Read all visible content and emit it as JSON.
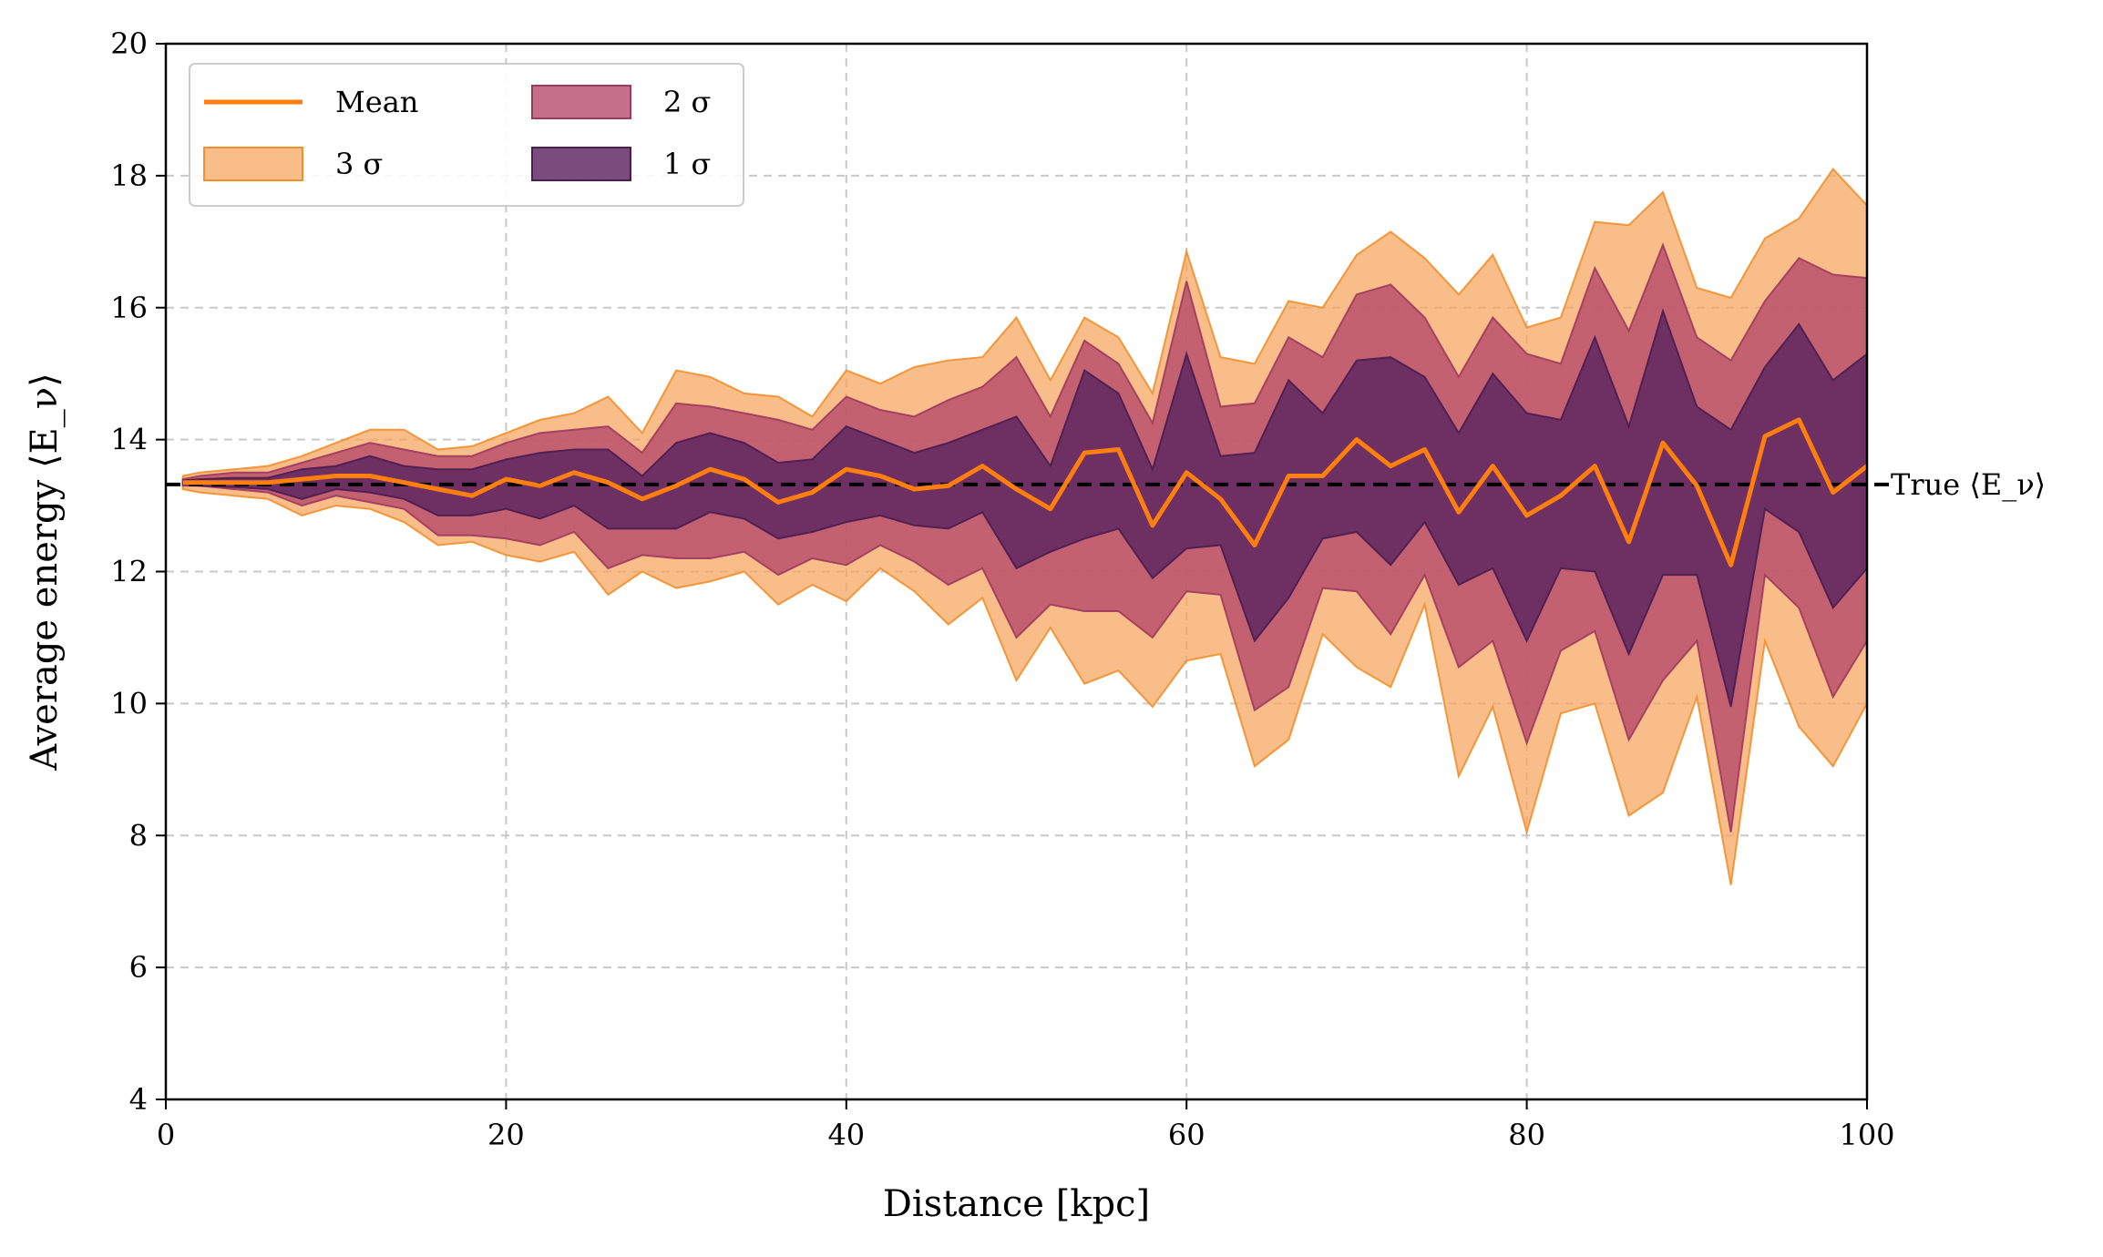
{
  "chart_data": {
    "type": "area",
    "xlabel": "Distance [kpc]",
    "ylabel": "Average energy ⟨E_ν⟩",
    "xlim": [
      0,
      100
    ],
    "ylim": [
      4,
      20
    ],
    "xticks": [
      0,
      20,
      40,
      60,
      80,
      100
    ],
    "yticks": [
      4,
      6,
      8,
      10,
      12,
      14,
      16,
      18,
      20
    ],
    "grid": "dashed",
    "legend_position": "top-left",
    "reference_line": {
      "value": 13.32,
      "label": "True ⟨E_ν⟩",
      "style": "dashed",
      "color": "#000000"
    },
    "x": [
      1,
      2,
      4,
      6,
      8,
      10,
      12,
      14,
      16,
      18,
      20,
      22,
      24,
      26,
      28,
      30,
      32,
      34,
      36,
      38,
      40,
      42,
      44,
      46,
      48,
      50,
      52,
      54,
      56,
      58,
      60,
      62,
      64,
      66,
      68,
      70,
      72,
      74,
      76,
      78,
      80,
      82,
      84,
      86,
      88,
      90,
      92,
      94,
      96,
      98,
      100
    ],
    "series": [
      {
        "name": "Mean",
        "kind": "line",
        "color": "#ff7f0e",
        "values": [
          13.35,
          13.35,
          13.35,
          13.35,
          13.4,
          13.45,
          13.45,
          13.35,
          13.25,
          13.15,
          13.4,
          13.3,
          13.5,
          13.35,
          13.1,
          13.3,
          13.55,
          13.4,
          13.05,
          13.2,
          13.55,
          13.45,
          13.25,
          13.3,
          13.6,
          13.25,
          12.95,
          13.8,
          13.85,
          12.7,
          13.5,
          13.1,
          12.4,
          13.45,
          13.45,
          14.0,
          13.6,
          13.85,
          12.9,
          13.6,
          12.85,
          13.15,
          13.6,
          12.45,
          13.95,
          13.3,
          12.1,
          14.05,
          14.3,
          13.2,
          13.6
        ]
      },
      {
        "name": "3 σ",
        "kind": "band",
        "color": "#f7a35c",
        "upper": [
          13.45,
          13.5,
          13.55,
          13.6,
          13.75,
          13.95,
          14.15,
          14.15,
          13.85,
          13.9,
          14.1,
          14.3,
          14.4,
          14.65,
          14.1,
          15.05,
          14.95,
          14.7,
          14.65,
          14.35,
          15.05,
          14.85,
          15.1,
          15.2,
          15.25,
          15.85,
          14.9,
          15.85,
          15.55,
          14.7,
          16.85,
          15.25,
          15.15,
          16.1,
          16.0,
          16.8,
          17.15,
          16.75,
          16.2,
          16.8,
          15.7,
          15.85,
          17.3,
          17.25,
          17.75,
          16.3,
          16.15,
          17.05,
          17.35,
          18.1,
          17.55
        ],
        "lower": [
          13.25,
          13.2,
          13.15,
          13.1,
          12.85,
          13.0,
          12.95,
          12.75,
          12.4,
          12.45,
          12.25,
          12.15,
          12.3,
          11.65,
          12.0,
          11.75,
          11.85,
          12.0,
          11.5,
          11.8,
          11.55,
          12.05,
          11.7,
          11.2,
          11.6,
          10.35,
          11.15,
          10.3,
          10.5,
          9.95,
          10.65,
          10.75,
          9.05,
          9.45,
          11.05,
          10.55,
          10.25,
          11.5,
          8.9,
          9.95,
          8.05,
          9.85,
          10.0,
          8.3,
          8.65,
          10.1,
          7.25,
          10.95,
          9.65,
          9.05,
          10.0
        ]
      },
      {
        "name": "2 σ",
        "kind": "band",
        "color": "#b5476a",
        "upper": [
          13.4,
          13.45,
          13.5,
          13.5,
          13.65,
          13.8,
          13.95,
          13.85,
          13.75,
          13.75,
          13.95,
          14.1,
          14.15,
          14.2,
          13.8,
          14.55,
          14.5,
          14.4,
          14.3,
          14.15,
          14.65,
          14.45,
          14.35,
          14.6,
          14.8,
          15.25,
          14.35,
          15.5,
          15.15,
          14.25,
          16.4,
          14.5,
          14.55,
          15.55,
          15.25,
          16.2,
          16.35,
          15.85,
          14.95,
          15.85,
          15.3,
          15.15,
          16.6,
          15.65,
          16.95,
          15.55,
          15.2,
          16.1,
          16.75,
          16.5,
          16.45
        ],
        "lower": [
          13.3,
          13.3,
          13.25,
          13.2,
          13.0,
          13.15,
          13.05,
          12.95,
          12.55,
          12.55,
          12.5,
          12.4,
          12.6,
          12.05,
          12.25,
          12.2,
          12.2,
          12.3,
          11.95,
          12.2,
          12.1,
          12.4,
          12.15,
          11.8,
          12.05,
          11.0,
          11.5,
          11.4,
          11.4,
          11.0,
          11.7,
          11.65,
          9.9,
          10.25,
          11.75,
          11.7,
          11.05,
          11.95,
          10.55,
          10.95,
          9.4,
          10.8,
          11.1,
          9.45,
          10.35,
          10.95,
          8.05,
          11.95,
          11.45,
          10.1,
          10.95
        ]
      },
      {
        "name": "1 σ",
        "kind": "band",
        "color": "#5b2560",
        "upper": [
          13.38,
          13.4,
          13.42,
          13.42,
          13.55,
          13.6,
          13.75,
          13.6,
          13.55,
          13.55,
          13.7,
          13.8,
          13.85,
          13.85,
          13.45,
          13.95,
          14.1,
          13.95,
          13.65,
          13.7,
          14.2,
          14.0,
          13.8,
          13.95,
          14.15,
          14.35,
          13.6,
          15.05,
          14.7,
          13.55,
          15.3,
          13.75,
          13.8,
          14.9,
          14.4,
          15.2,
          15.25,
          14.95,
          14.1,
          15.0,
          14.4,
          14.3,
          15.55,
          14.2,
          15.95,
          14.5,
          14.15,
          15.1,
          15.75,
          14.9,
          15.3
        ],
        "lower": [
          13.32,
          13.3,
          13.28,
          13.25,
          13.1,
          13.25,
          13.2,
          13.1,
          12.85,
          12.85,
          12.95,
          12.8,
          13.0,
          12.65,
          12.65,
          12.65,
          12.9,
          12.8,
          12.5,
          12.6,
          12.75,
          12.85,
          12.7,
          12.65,
          12.9,
          12.05,
          12.3,
          12.5,
          12.65,
          11.9,
          12.35,
          12.4,
          10.95,
          11.6,
          12.5,
          12.6,
          12.1,
          12.75,
          11.8,
          12.05,
          10.95,
          12.05,
          12.0,
          10.75,
          11.95,
          11.95,
          9.95,
          12.95,
          12.6,
          11.45,
          12.05
        ]
      }
    ]
  },
  "legend": [
    {
      "label": "Mean",
      "kind": "line",
      "color": "#ff7f0e"
    },
    {
      "label": "3 σ",
      "kind": "band",
      "color": "#f7a35c"
    },
    {
      "label": "2 σ",
      "kind": "band",
      "color": "#b5476a"
    },
    {
      "label": "1 σ",
      "kind": "band",
      "color": "#5b2560"
    }
  ]
}
